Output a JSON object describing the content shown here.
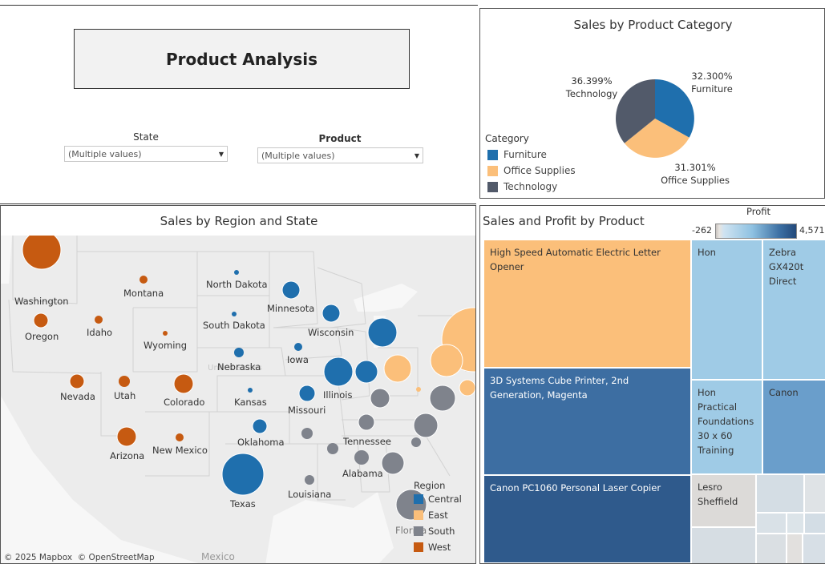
{
  "dashboard": {
    "title": "Product Analysis",
    "filters": [
      {
        "label": "State",
        "value": "(Multiple values)"
      },
      {
        "label": "Product",
        "value": "(Multiple values)"
      }
    ]
  },
  "category_panel": {
    "title": "Sales by Product Category",
    "legend_title": "Category",
    "legend_items": [
      {
        "label": "Furniture",
        "color": "#1f6fad"
      },
      {
        "label": "Office Supplies",
        "color": "#fbbf7a"
      },
      {
        "label": "Technology",
        "color": "#525a6a"
      }
    ],
    "slice_labels": [
      {
        "pct": "32.300%",
        "name": "Furniture"
      },
      {
        "pct": "31.301%",
        "name": "Office Supplies"
      },
      {
        "pct": "36.399%",
        "name": "Technology"
      }
    ]
  },
  "map_panel": {
    "title": "Sales by Region and State",
    "attribution": "© 2025 Mapbox  © OpenStreetMap",
    "basemap_labels": {
      "country": "Mexico",
      "us_faint": "United States"
    },
    "states": [
      "Washington",
      "Oregon",
      "Montana",
      "Idaho",
      "Wyoming",
      "Nevada",
      "Utah",
      "Colorado",
      "Arizona",
      "New Mexico",
      "North Dakota",
      "South Dakota",
      "Nebraska",
      "Kansas",
      "Oklahoma",
      "Texas",
      "Minnesota",
      "Iowa",
      "Missouri",
      "Wisconsin",
      "Illinois",
      "Tennessee",
      "Alabama",
      "Louisiana",
      "Florida"
    ],
    "legend_title": "Region",
    "legend_items": [
      {
        "label": "Central",
        "color": "#1f6fad"
      },
      {
        "label": "East",
        "color": "#fbbf7a"
      },
      {
        "label": "South",
        "color": "#7f838c"
      },
      {
        "label": "West",
        "color": "#c65a11"
      }
    ]
  },
  "treemap_panel": {
    "title": "Sales and Profit by Product",
    "profit_legend": {
      "title": "Profit",
      "min": "-262",
      "max": "4,571"
    },
    "cells": [
      {
        "label": "High Speed Automatic Electric Letter Opener",
        "color": "#fbbf7a",
        "text_color": "#333"
      },
      {
        "label": "3D Systems Cube Printer, 2nd Generation, Magenta",
        "color": "#3d6ea2",
        "text_color": "#ffffff"
      },
      {
        "label": "Canon PC1060 Personal Laser Copier",
        "color": "#2f5a8c",
        "text_color": "#ffffff"
      },
      {
        "label": "Hon",
        "color": "#9fcbe6",
        "text_color": "#333"
      },
      {
        "label": "Zebra GX420t Direct",
        "color": "#9fcbe6",
        "text_color": "#333"
      },
      {
        "label": "Hon Practical Foundations 30 x 60 Training",
        "color": "#9fcbe6",
        "text_color": "#333"
      },
      {
        "label": "Canon",
        "color": "#6a9ecb",
        "text_color": "#333"
      },
      {
        "label": "Lesro Sheffield",
        "color": "#dcdad8",
        "text_color": "#333"
      }
    ]
  }
}
